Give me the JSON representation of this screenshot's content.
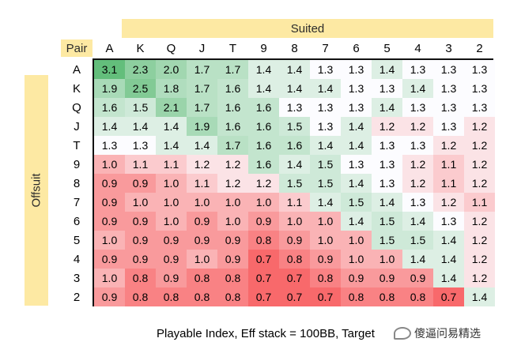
{
  "chart_data": {
    "type": "heatmap",
    "top_label": "Suited",
    "side_label": "Offsuit",
    "corner_label": "Pair",
    "columns": [
      "A",
      "K",
      "Q",
      "J",
      "T",
      "9",
      "8",
      "7",
      "6",
      "5",
      "4",
      "3",
      "2"
    ],
    "rows": [
      "A",
      "K",
      "Q",
      "J",
      "T",
      "9",
      "8",
      "7",
      "6",
      "5",
      "4",
      "3",
      "2"
    ],
    "values": [
      [
        "3.1",
        "2.3",
        "2.0",
        "1.7",
        "1.7",
        "1.4",
        "1.4",
        "1.3",
        "1.3",
        "1.4",
        "1.3",
        "1.3",
        "1.3"
      ],
      [
        "1.9",
        "2.5",
        "1.8",
        "1.7",
        "1.6",
        "1.4",
        "1.4",
        "1.4",
        "1.3",
        "1.3",
        "1.4",
        "1.3",
        "1.3"
      ],
      [
        "1.6",
        "1.5",
        "2.1",
        "1.7",
        "1.6",
        "1.6",
        "1.3",
        "1.3",
        "1.3",
        "1.4",
        "1.3",
        "1.3",
        "1.3"
      ],
      [
        "1.4",
        "1.4",
        "1.4",
        "1.9",
        "1.6",
        "1.6",
        "1.5",
        "1.3",
        "1.4",
        "1.2",
        "1.2",
        "1.3",
        "1.2"
      ],
      [
        "1.3",
        "1.3",
        "1.4",
        "1.4",
        "1.7",
        "1.6",
        "1.6",
        "1.4",
        "1.4",
        "1.3",
        "1.3",
        "1.2",
        "1.2"
      ],
      [
        "1.0",
        "1.1",
        "1.1",
        "1.2",
        "1.2",
        "1.6",
        "1.4",
        "1.5",
        "1.3",
        "1.3",
        "1.2",
        "1.1",
        "1.2"
      ],
      [
        "0.9",
        "0.9",
        "1.0",
        "1.1",
        "1.2",
        "1.2",
        "1.5",
        "1.5",
        "1.4",
        "1.3",
        "1.2",
        "1.1",
        "1.2"
      ],
      [
        "0.9",
        "1.0",
        "1.0",
        "1.0",
        "1.0",
        "1.0",
        "1.1",
        "1.4",
        "1.5",
        "1.4",
        "1.3",
        "1.2",
        "1.1"
      ],
      [
        "0.9",
        "0.9",
        "1.0",
        "0.9",
        "1.0",
        "0.9",
        "1.0",
        "1.0",
        "1.4",
        "1.5",
        "1.4",
        "1.3",
        "1.2"
      ],
      [
        "1.0",
        "0.9",
        "0.9",
        "0.9",
        "0.9",
        "0.8",
        "0.9",
        "1.0",
        "1.0",
        "1.5",
        "1.5",
        "1.4",
        "1.2"
      ],
      [
        "0.9",
        "0.9",
        "0.9",
        "1.0",
        "0.9",
        "0.7",
        "0.8",
        "0.9",
        "1.0",
        "1.0",
        "1.4",
        "1.4",
        "1.2"
      ],
      [
        "1.0",
        "0.8",
        "0.9",
        "0.8",
        "0.8",
        "0.7",
        "0.7",
        "0.8",
        "0.9",
        "0.9",
        "0.9",
        "1.4",
        "1.2"
      ],
      [
        "0.9",
        "0.8",
        "0.8",
        "0.8",
        "0.8",
        "0.7",
        "0.7",
        "0.7",
        "0.8",
        "0.8",
        "0.8",
        "0.7",
        "1.4"
      ]
    ],
    "colors": {
      "low": "#f8696b",
      "mid": "#fcfcff",
      "high": "#63be7b",
      "label_bg": "#fde9a3"
    },
    "caption": "Playable Index, Eff stack = 100BB, Target"
  },
  "watermark": {
    "icon": "wechat-bubble-icon",
    "text": "傻逼问易精选"
  }
}
